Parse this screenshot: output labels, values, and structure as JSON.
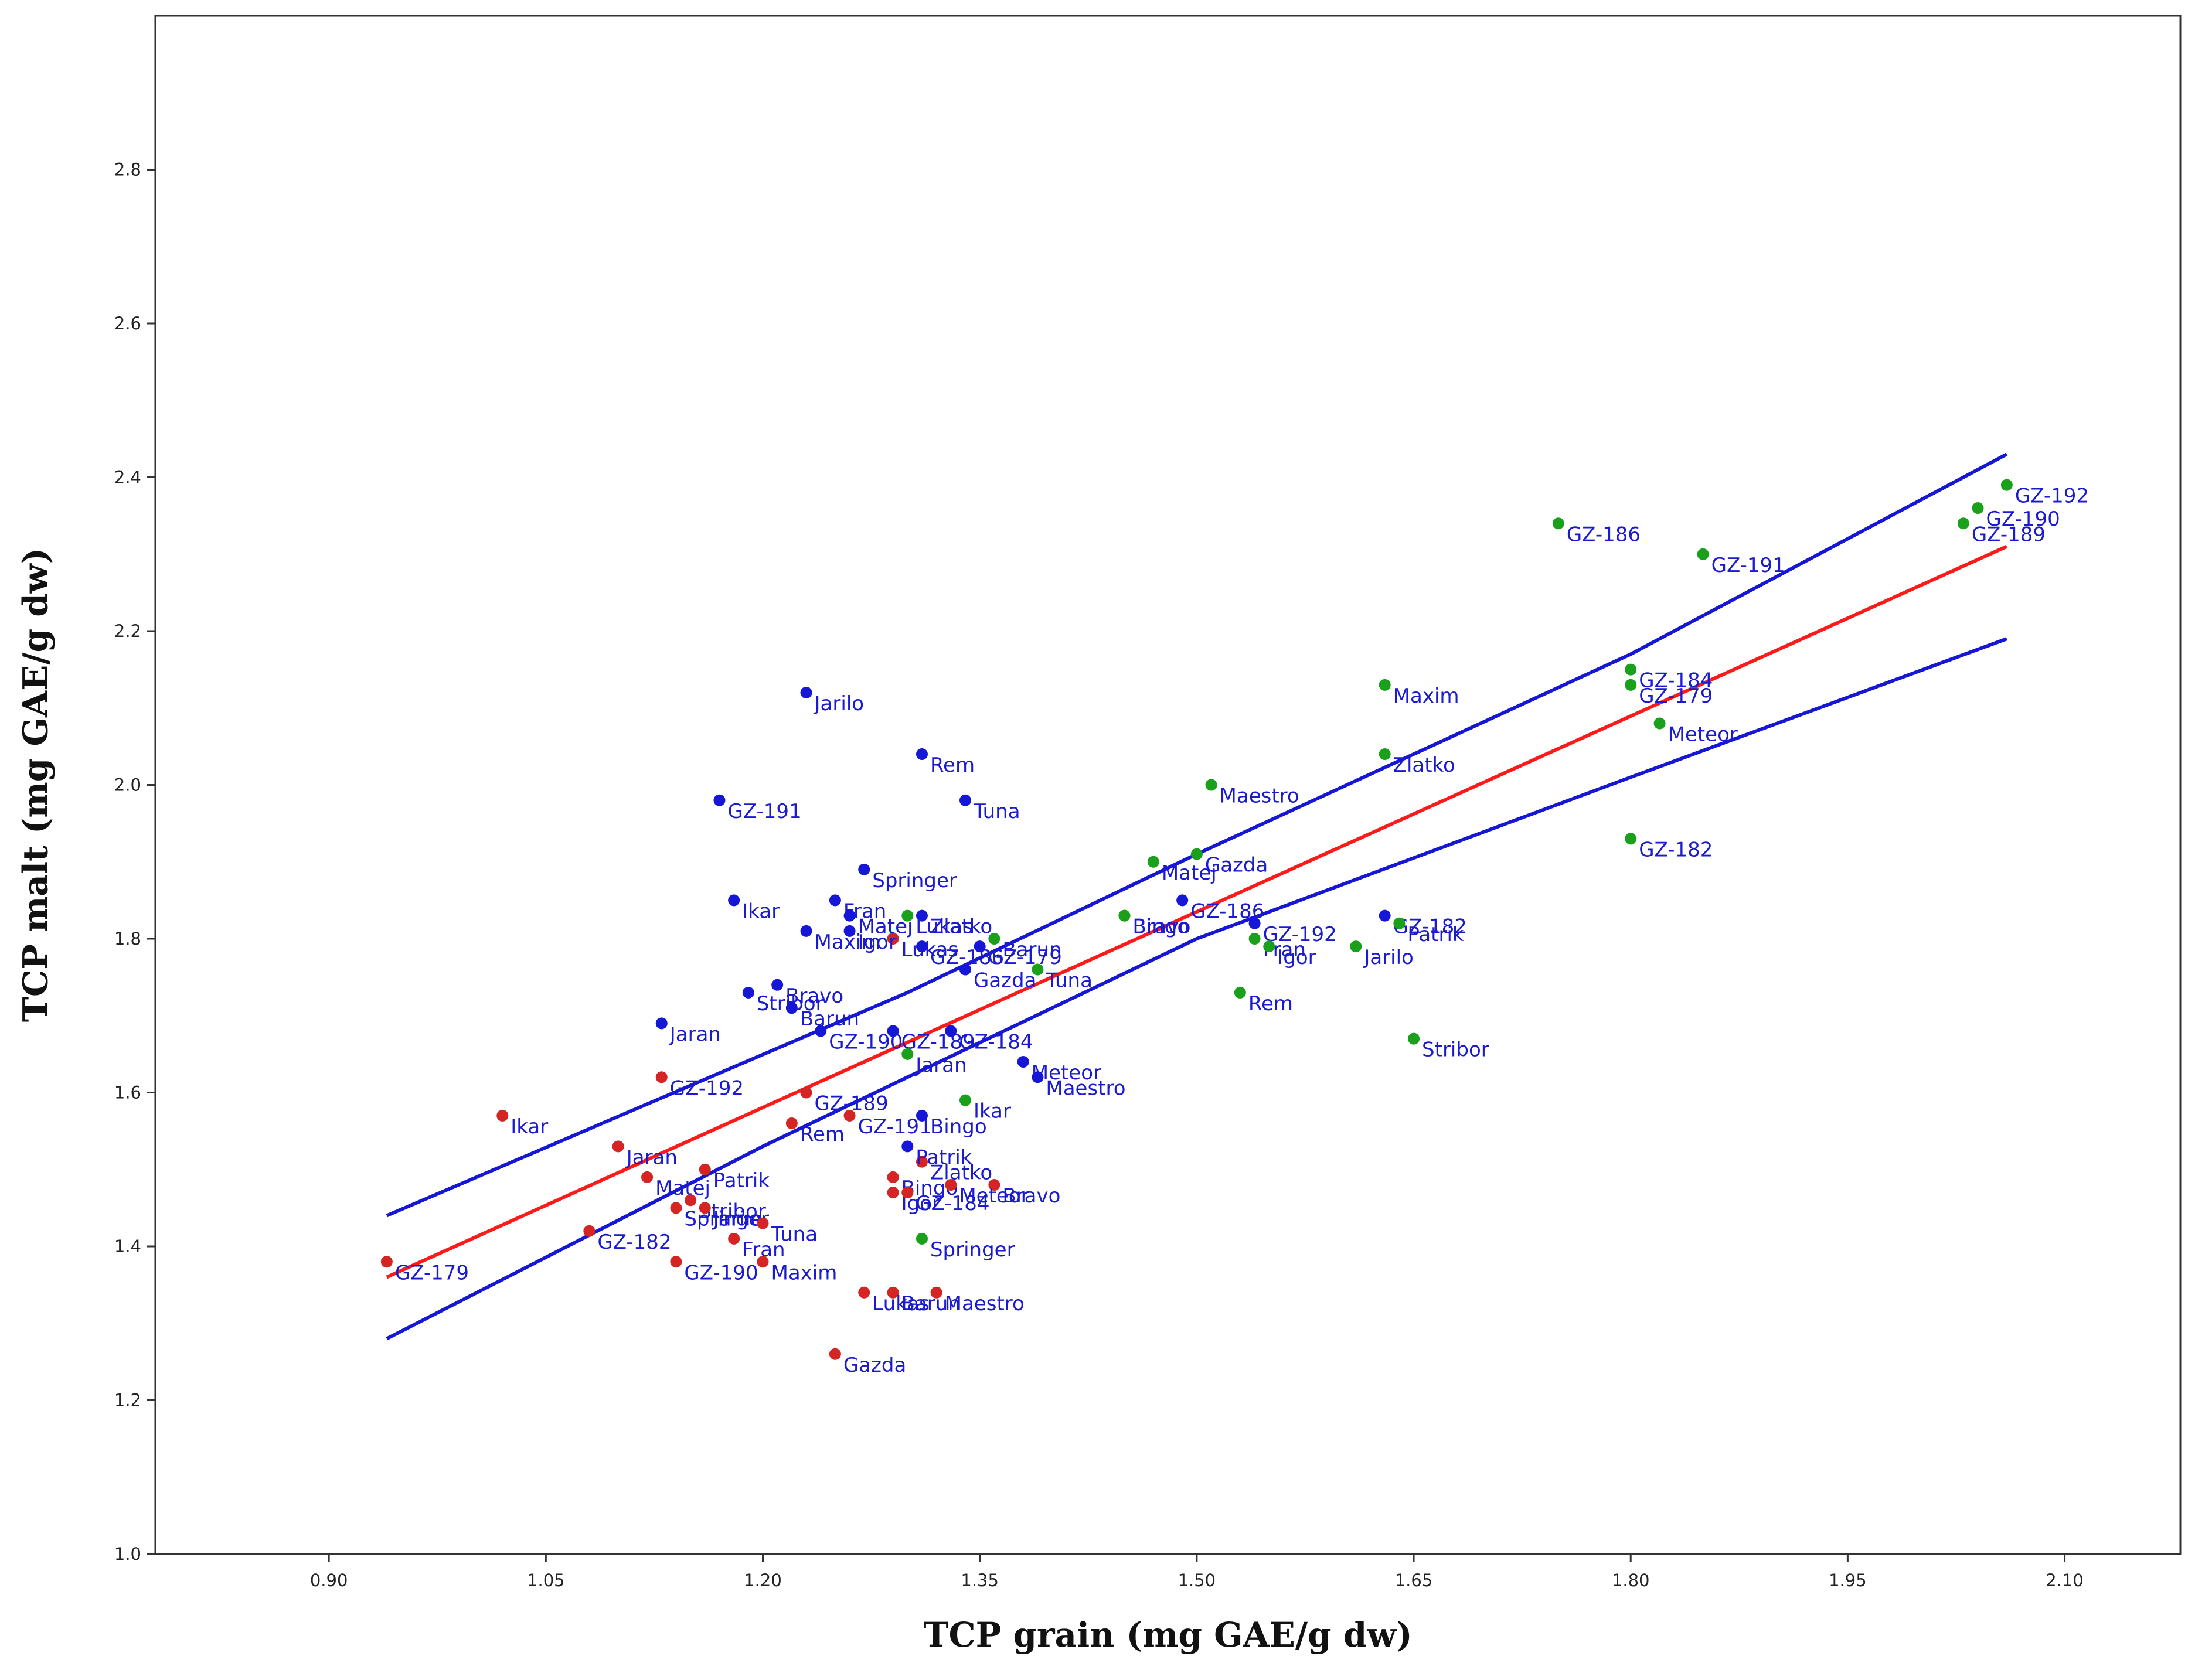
{
  "chart_data": {
    "type": "scatter",
    "title": "",
    "xlabel": "TCP grain (mg GAE/g dw)",
    "ylabel": "TCP malt (mg GAE/g dw)",
    "xlim": [
      0.78,
      2.18
    ],
    "ylim": [
      1.0,
      3.0
    ],
    "xticks": [
      "0.90",
      "1.05",
      "1.20",
      "1.35",
      "1.50",
      "1.65",
      "1.80",
      "1.95",
      "2.10"
    ],
    "yticks": [
      "1.0",
      "1.2",
      "1.4",
      "1.6",
      "1.8",
      "2.0",
      "2.2",
      "2.4",
      "2.6",
      "2.8"
    ],
    "grid": false,
    "colors": {
      "red_series": "#d42424",
      "blue_series": "#1616d6",
      "green_series": "#1aa01a",
      "label_text": "#1a1ad0",
      "fit_line": "#ff1a1a",
      "interval_lines": "#1616d6"
    },
    "series": [
      {
        "name": "red",
        "color": "#d42424",
        "points": [
          {
            "label": "GZ-179",
            "x": 0.94,
            "y": 1.38
          },
          {
            "label": "Ikar",
            "x": 1.02,
            "y": 1.57
          },
          {
            "label": "GZ-192",
            "x": 1.13,
            "y": 1.62
          },
          {
            "label": "Jaran",
            "x": 1.1,
            "y": 1.53
          },
          {
            "label": "Matej",
            "x": 1.12,
            "y": 1.49
          },
          {
            "label": "Patrik",
            "x": 1.16,
            "y": 1.5
          },
          {
            "label": "Stribor",
            "x": 1.15,
            "y": 1.46
          },
          {
            "label": "Springer",
            "x": 1.14,
            "y": 1.45
          },
          {
            "label": "Jarilo",
            "x": 1.16,
            "y": 1.45
          },
          {
            "label": "GZ-182",
            "x": 1.08,
            "y": 1.42
          },
          {
            "label": "Tuna",
            "x": 1.2,
            "y": 1.43
          },
          {
            "label": "Fran",
            "x": 1.18,
            "y": 1.41
          },
          {
            "label": "GZ-190",
            "x": 1.14,
            "y": 1.38
          },
          {
            "label": "Maxim",
            "x": 1.2,
            "y": 1.38
          },
          {
            "label": "GZ-189",
            "x": 1.23,
            "y": 1.6
          },
          {
            "label": "Rem",
            "x": 1.22,
            "y": 1.56
          },
          {
            "label": "GZ-191",
            "x": 1.26,
            "y": 1.57
          },
          {
            "label": "Lukas",
            "x": 1.29,
            "y": 1.8
          },
          {
            "label": "Zlatko",
            "x": 1.31,
            "y": 1.51
          },
          {
            "label": "Bingo",
            "x": 1.29,
            "y": 1.49
          },
          {
            "label": "Bravo",
            "x": 1.36,
            "y": 1.48
          },
          {
            "label": "Igor",
            "x": 1.29,
            "y": 1.47
          },
          {
            "label": "GZ-184",
            "x": 1.3,
            "y": 1.47
          },
          {
            "label": "Meteor",
            "x": 1.33,
            "y": 1.48
          },
          {
            "label": "Barun",
            "x": 1.29,
            "y": 1.34
          },
          {
            "label": "Lukas",
            "x": 1.27,
            "y": 1.34
          },
          {
            "label": "Maestro",
            "x": 1.32,
            "y": 1.34
          },
          {
            "label": "Gazda",
            "x": 1.25,
            "y": 1.26
          }
        ]
      },
      {
        "name": "blue",
        "color": "#1616d6",
        "points": [
          {
            "label": "Jarilo",
            "x": 1.23,
            "y": 2.12
          },
          {
            "label": "Rem",
            "x": 1.31,
            "y": 2.04
          },
          {
            "label": "GZ-191",
            "x": 1.17,
            "y": 1.98
          },
          {
            "label": "Tuna",
            "x": 1.34,
            "y": 1.98
          },
          {
            "label": "Springer",
            "x": 1.27,
            "y": 1.89
          },
          {
            "label": "Ikar",
            "x": 1.18,
            "y": 1.85
          },
          {
            "label": "Fran",
            "x": 1.25,
            "y": 1.85
          },
          {
            "label": "Matej",
            "x": 1.26,
            "y": 1.83
          },
          {
            "label": "Zlatko",
            "x": 1.31,
            "y": 1.83
          },
          {
            "label": "Maxim",
            "x": 1.23,
            "y": 1.81
          },
          {
            "label": "Igor",
            "x": 1.26,
            "y": 1.81
          },
          {
            "label": "GZ-186",
            "x": 1.31,
            "y": 1.79
          },
          {
            "label": "GZ-179",
            "x": 1.35,
            "y": 1.79
          },
          {
            "label": "Gazda",
            "x": 1.34,
            "y": 1.76
          },
          {
            "label": "Bravo",
            "x": 1.21,
            "y": 1.74
          },
          {
            "label": "Stribor",
            "x": 1.19,
            "y": 1.73
          },
          {
            "label": "Barun",
            "x": 1.22,
            "y": 1.71
          },
          {
            "label": "Jaran",
            "x": 1.13,
            "y": 1.69
          },
          {
            "label": "GZ-190",
            "x": 1.24,
            "y": 1.68
          },
          {
            "label": "GZ-189",
            "x": 1.29,
            "y": 1.68
          },
          {
            "label": "GZ-184",
            "x": 1.33,
            "y": 1.68
          },
          {
            "label": "Meteor",
            "x": 1.38,
            "y": 1.64
          },
          {
            "label": "Maestro",
            "x": 1.39,
            "y": 1.62
          },
          {
            "label": "Bingo",
            "x": 1.31,
            "y": 1.57
          },
          {
            "label": "Patrik",
            "x": 1.3,
            "y": 1.53
          },
          {
            "label": "GZ-186",
            "x": 1.49,
            "y": 1.85
          },
          {
            "label": "GZ-192",
            "x": 1.54,
            "y": 1.82
          },
          {
            "label": "GZ-182",
            "x": 1.63,
            "y": 1.83
          }
        ]
      },
      {
        "name": "green",
        "color": "#1aa01a",
        "points": [
          {
            "label": "GZ-192",
            "x": 2.06,
            "y": 2.39
          },
          {
            "label": "GZ-190",
            "x": 2.04,
            "y": 2.36
          },
          {
            "label": "GZ-189",
            "x": 2.03,
            "y": 2.34
          },
          {
            "label": "GZ-186",
            "x": 1.75,
            "y": 2.34
          },
          {
            "label": "GZ-191",
            "x": 1.85,
            "y": 2.3
          },
          {
            "label": "GZ-184",
            "x": 1.8,
            "y": 2.15
          },
          {
            "label": "GZ-179",
            "x": 1.8,
            "y": 2.13
          },
          {
            "label": "Maxim",
            "x": 1.63,
            "y": 2.13
          },
          {
            "label": "Meteor",
            "x": 1.82,
            "y": 2.08
          },
          {
            "label": "Zlatko",
            "x": 1.63,
            "y": 2.04
          },
          {
            "label": "Maestro",
            "x": 1.51,
            "y": 2.0
          },
          {
            "label": "GZ-182",
            "x": 1.8,
            "y": 1.93
          },
          {
            "label": "Gazda",
            "x": 1.5,
            "y": 1.91
          },
          {
            "label": "Matej",
            "x": 1.47,
            "y": 1.9
          },
          {
            "label": "Bingo",
            "x": 1.45,
            "y": 1.83
          },
          {
            "label": "Bravo",
            "x": 1.45,
            "y": 1.83
          },
          {
            "label": "Patrik",
            "x": 1.64,
            "y": 1.82
          },
          {
            "label": "Fran",
            "x": 1.54,
            "y": 1.8
          },
          {
            "label": "Igor",
            "x": 1.55,
            "y": 1.79
          },
          {
            "label": "Jarilo",
            "x": 1.61,
            "y": 1.79
          },
          {
            "label": "Barun",
            "x": 1.36,
            "y": 1.8
          },
          {
            "label": "Lukas",
            "x": 1.3,
            "y": 1.83
          },
          {
            "label": "Tuna",
            "x": 1.39,
            "y": 1.76
          },
          {
            "label": "Rem",
            "x": 1.53,
            "y": 1.73
          },
          {
            "label": "Stribor",
            "x": 1.65,
            "y": 1.67
          },
          {
            "label": "Jaran",
            "x": 1.3,
            "y": 1.65
          },
          {
            "label": "Ikar",
            "x": 1.34,
            "y": 1.59
          },
          {
            "label": "Springer",
            "x": 1.31,
            "y": 1.41
          }
        ]
      }
    ],
    "fit_line": {
      "name": "regression",
      "x": [
        0.94,
        2.06
      ],
      "y": [
        1.36,
        2.31
      ]
    },
    "confidence_bands": [
      {
        "name": "upper",
        "x": [
          0.94,
          1.3,
          1.5,
          1.8,
          2.06
        ],
        "y": [
          1.44,
          1.73,
          1.91,
          2.17,
          2.43
        ]
      },
      {
        "name": "lower",
        "x": [
          0.94,
          1.2,
          1.5,
          1.8,
          2.06
        ],
        "y": [
          1.28,
          1.53,
          1.8,
          2.01,
          2.19
        ]
      }
    ]
  }
}
